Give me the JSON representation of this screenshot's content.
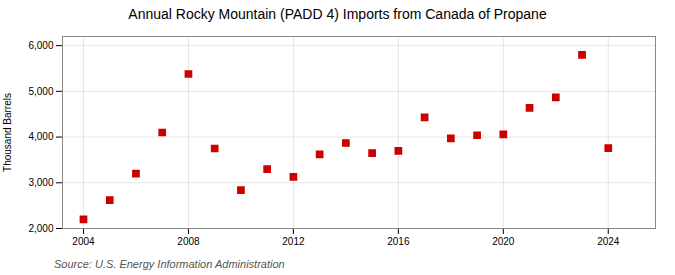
{
  "chart_data": {
    "type": "scatter",
    "title": "Annual Rocky Mountain (PADD 4) Imports from Canada of Propane",
    "ylabel": "Thousand Barrels",
    "annotations": [
      "Source: U.S. Energy Information Administration"
    ],
    "x": [
      2004,
      2005,
      2006,
      2007,
      2008,
      2009,
      2010,
      2011,
      2012,
      2013,
      2014,
      2015,
      2016,
      2017,
      2018,
      2019,
      2020,
      2021,
      2022,
      2023,
      2024
    ],
    "values": [
      2200,
      2620,
      3200,
      4100,
      5380,
      3750,
      2840,
      3300,
      3130,
      3620,
      3870,
      3650,
      3700,
      4430,
      3970,
      4040,
      4060,
      4640,
      4870,
      5800,
      3760
    ],
    "color": "#cc0000",
    "marker": "square",
    "xlim": [
      2003.2,
      2025.8
    ],
    "xticks": [
      2004,
      2008,
      2012,
      2016,
      2020,
      2024
    ],
    "ylim": [
      2000,
      6200
    ],
    "yticks": [
      {
        "value": 2000,
        "label": "2,000"
      },
      {
        "value": 3000,
        "label": "3,000"
      },
      {
        "value": 4000,
        "label": "4,000"
      },
      {
        "value": 5000,
        "label": "5,000"
      },
      {
        "value": 6000,
        "label": "6,000"
      }
    ],
    "grid": true
  }
}
